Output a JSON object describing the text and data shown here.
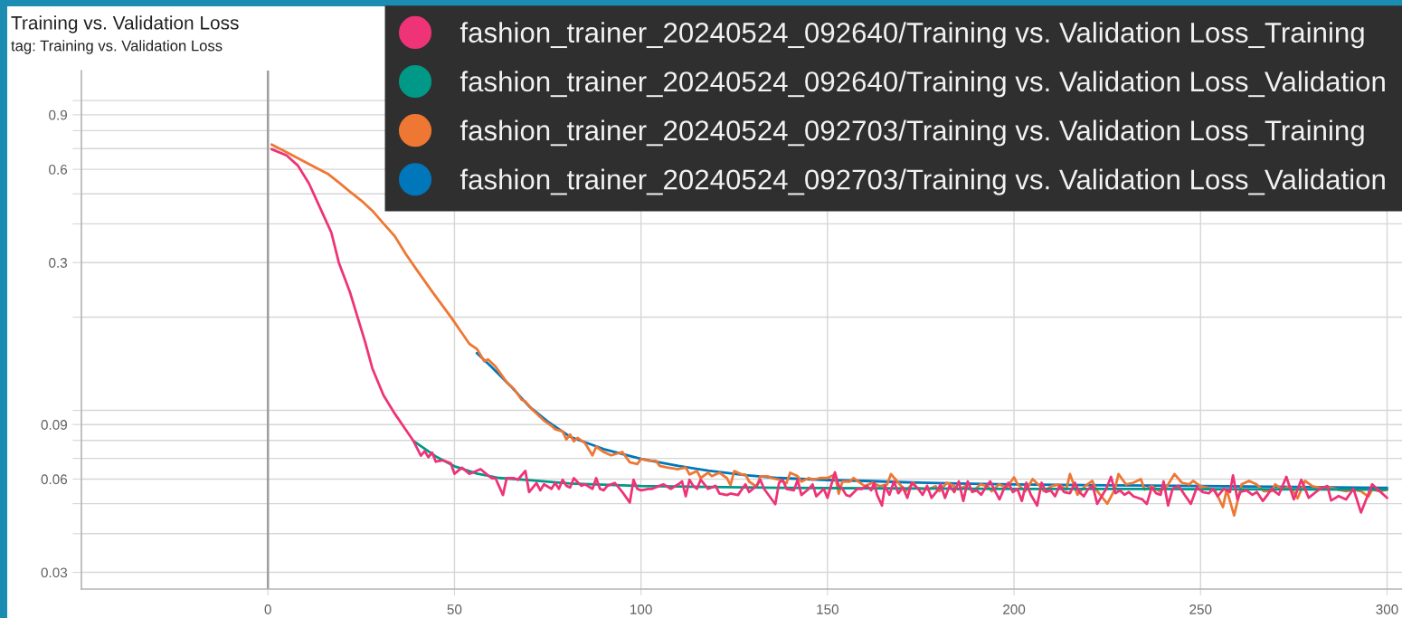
{
  "chart_data": {
    "type": "line",
    "title": "Training vs. Validation Loss",
    "subtitle": "tag: Training vs. Validation Loss",
    "log": "y",
    "grid": true,
    "legend": "top right",
    "marker": "none",
    "line_style": "solid",
    "xlim": [
      -50,
      304
    ],
    "xticks": [
      0,
      50,
      100,
      150,
      200,
      250,
      300
    ],
    "ylim": [
      0.0265,
      1.25
    ],
    "yticks": [
      0.03,
      {
        "value": 0.04,
        "label": null
      },
      {
        "value": 0.05,
        "label": null
      },
      0.06,
      {
        "value": 0.07,
        "label": null
      },
      {
        "value": 0.08,
        "label": null
      },
      0.09,
      {
        "value": 0.1,
        "label": null
      },
      {
        "value": 0.2,
        "label": null
      },
      0.3,
      {
        "value": 0.4,
        "label": null
      },
      {
        "value": 0.5,
        "label": null
      },
      0.6,
      {
        "value": 0.7,
        "label": null
      },
      {
        "value": 0.8,
        "label": null
      },
      0.9,
      {
        "value": 1,
        "label": null
      }
    ],
    "ref_lines": [
      {
        "axis": "x",
        "value": 0,
        "color": "#9e9e9e"
      }
    ],
    "series": [
      {
        "name": "fashion_trainer_20240524_092640/Training vs. Validation Loss_Training",
        "color": "#ee3377",
        "x": [
          1,
          5,
          8,
          11,
          14,
          17,
          19,
          22,
          24,
          26,
          28,
          31,
          34,
          37,
          39,
          41,
          42,
          43,
          44,
          45,
          47,
          49,
          50,
          52,
          54,
          55,
          57,
          59,
          60,
          61,
          63,
          64,
          66,
          67,
          69,
          70,
          72,
          73,
          74,
          76,
          77,
          78,
          79,
          80,
          81,
          82,
          84,
          85,
          87,
          88,
          89,
          90,
          91,
          93,
          94,
          95,
          97,
          98,
          99,
          100,
          102,
          103,
          105,
          106,
          108,
          110,
          111,
          112,
          113,
          114,
          115,
          116,
          118,
          119,
          120,
          121,
          123,
          124,
          126,
          128,
          129,
          131,
          132,
          133,
          136,
          137,
          138,
          139,
          141,
          142,
          143,
          145,
          146,
          147,
          149,
          150,
          152,
          153,
          154,
          155,
          156,
          158,
          159.3,
          160.5,
          161.7,
          162.5,
          163.3,
          164.6,
          165.4,
          166.6,
          167.8,
          169,
          170.2,
          171.4,
          172.6,
          174.3,
          175.5,
          176.7,
          177.9,
          179.5,
          180.3,
          181.5,
          182.7,
          184,
          185.2,
          186.4,
          187.6,
          188.8,
          190,
          191.2,
          192.4,
          193.6,
          194.8,
          196.1,
          197.3,
          198.5,
          199.7,
          200.9,
          202.1,
          203.3,
          204.5,
          206.2,
          207.4,
          208.6,
          209.8,
          211,
          212.2,
          213.4,
          215,
          216.3,
          217.5,
          218.7,
          219.9,
          221.1,
          222.3,
          223.5,
          224.7,
          226,
          227.2,
          228.4,
          229.6,
          230.8,
          232,
          233.2,
          234.4,
          235.6,
          236.9,
          238.1,
          239.3,
          240.1,
          241.3,
          242.5,
          244.1,
          245.7,
          247.4,
          249,
          250.6,
          252.2,
          253.4,
          254.6,
          256.2,
          257.9,
          258.7,
          259.9,
          260.7,
          262.3,
          263.9,
          265.1,
          266.7,
          268,
          269,
          271,
          273,
          275,
          277,
          279,
          282,
          284,
          285,
          287,
          289,
          291,
          293,
          296,
          300
        ],
        "values": [
          0.697,
          0.665,
          0.6175,
          0.54,
          0.45,
          0.375,
          0.3,
          0.2406,
          0.2005,
          0.1672,
          0.1366,
          0.1117,
          0.0976,
          0.0864,
          0.0797,
          0.0714,
          0.0739,
          0.0706,
          0.0731,
          0.0683,
          0.069,
          0.0675,
          0.0624,
          0.0653,
          0.0624,
          0.0631,
          0.0646,
          0.0617,
          0.0604,
          0.0604,
          0.0533,
          0.0604,
          0.0604,
          0.0597,
          0.0638,
          0.0545,
          0.0583,
          0.0552,
          0.0577,
          0.0558,
          0.0583,
          0.0558,
          0.0597,
          0.0571,
          0.0564,
          0.0604,
          0.0571,
          0.0577,
          0.0558,
          0.0604,
          0.0558,
          0.0552,
          0.0571,
          0.0583,
          0.0564,
          0.0545,
          0.0504,
          0.0597,
          0.0558,
          0.0552,
          0.0558,
          0.0558,
          0.0571,
          0.0577,
          0.0558,
          0.0577,
          0.059,
          0.0528,
          0.0597,
          0.0571,
          0.0558,
          0.0597,
          0.0558,
          0.0564,
          0.0571,
          0.0539,
          0.0533,
          0.0539,
          0.0533,
          0.0577,
          0.0545,
          0.0571,
          0.0597,
          0.0558,
          0.0498,
          0.0583,
          0.0597,
          0.0558,
          0.0552,
          0.0597,
          0.0533,
          0.0558,
          0.0577,
          0.0528,
          0.0558,
          0.0522,
          0.0631,
          0.0571,
          0.0558,
          0.0533,
          0.0528,
          0.0558,
          0.0558,
          0.0571,
          0.0552,
          0.0584,
          0.0534,
          0.0493,
          0.0571,
          0.0534,
          0.059,
          0.054,
          0.0564,
          0.0522,
          0.0584,
          0.0558,
          0.0534,
          0.0571,
          0.0522,
          0.0552,
          0.0577,
          0.0522,
          0.0571,
          0.0545,
          0.059,
          0.051,
          0.059,
          0.0545,
          0.0552,
          0.0534,
          0.0564,
          0.059,
          0.0552,
          0.0516,
          0.0558,
          0.0584,
          0.0545,
          0.0558,
          0.051,
          0.0584,
          0.0534,
          0.0493,
          0.0584,
          0.0545,
          0.0552,
          0.0528,
          0.0571,
          0.0545,
          0.054,
          0.0584,
          0.0545,
          0.0528,
          0.0558,
          0.0571,
          0.0499,
          0.0528,
          0.0558,
          0.061,
          0.054,
          0.0552,
          0.0534,
          0.0545,
          0.0528,
          0.0522,
          0.0516,
          0.0499,
          0.0564,
          0.054,
          0.0534,
          0.059,
          0.0493,
          0.0558,
          0.0571,
          0.0534,
          0.0499,
          0.0564,
          0.0545,
          0.054,
          0.0558,
          0.0528,
          0.0558,
          0.0545,
          0.0617,
          0.0516,
          0.0545,
          0.0552,
          0.0534,
          0.0545,
          0.051,
          0.0535,
          0.0558,
          0.0535,
          0.061,
          0.0516,
          0.0597,
          0.0522,
          0.0558,
          0.057,
          0.0512,
          0.0529,
          0.0516,
          0.0558,
          0.0468,
          0.0577,
          0.0522
        ]
      },
      {
        "name": "fashion_trainer_20240524_092640/Training vs. Validation Loss_Validation",
        "color": "#009988",
        "x": [
          39,
          45,
          50,
          56,
          62,
          70,
          81,
          100,
          118,
          137,
          165,
          200,
          250,
          300
        ],
        "values": [
          0.0797,
          0.071,
          0.066,
          0.0625,
          0.0605,
          0.0595,
          0.0581,
          0.057,
          0.0566,
          0.0562,
          0.056,
          0.0558,
          0.0557,
          0.0555
        ]
      },
      {
        "name": "fashion_trainer_20240524_092703/Training vs. Validation Loss_Training",
        "color": "#ee7733",
        "x": [
          1,
          5,
          8,
          12,
          16,
          19,
          22,
          25,
          28,
          31,
          34,
          37,
          40,
          44,
          49,
          54,
          56,
          58,
          59,
          61,
          64,
          66,
          68,
          69,
          71,
          74,
          76,
          77,
          79,
          80,
          81,
          82,
          83,
          85,
          87,
          88,
          90,
          92,
          95,
          97,
          99,
          100,
          102,
          104,
          105,
          107,
          110,
          112,
          113,
          115,
          116,
          118,
          119,
          121,
          123,
          124,
          125,
          127,
          128,
          129,
          131,
          132,
          134,
          135,
          137,
          139,
          140,
          142,
          143,
          145,
          146,
          148,
          150,
          152,
          153,
          154,
          156,
          157,
          160,
          162,
          164,
          166,
          167,
          169,
          171,
          173,
          174,
          177,
          179,
          180,
          182,
          184,
          185,
          187,
          189,
          191,
          193,
          194,
          196,
          198,
          200,
          201,
          203,
          205,
          207,
          208,
          210,
          212,
          214,
          215,
          217,
          219,
          221,
          222,
          225,
          227,
          228,
          230,
          232,
          234,
          235,
          237,
          239,
          241,
          243,
          245,
          247,
          248,
          250,
          252,
          254,
          256,
          257,
          259,
          261,
          263,
          265,
          267,
          269,
          270,
          272,
          274,
          276,
          278,
          280,
          282,
          283,
          285,
          287,
          289,
          291,
          293,
          295,
          296,
          298,
          300
        ],
        "values": [
          0.721,
          0.681,
          0.652,
          0.615,
          0.581,
          0.544,
          0.508,
          0.476,
          0.441,
          0.401,
          0.365,
          0.319,
          0.283,
          0.242,
          0.2005,
          0.164,
          0.158,
          0.144,
          0.146,
          0.1385,
          0.1233,
          0.1171,
          0.1083,
          0.1069,
          0.1002,
          0.0927,
          0.0892,
          0.0869,
          0.0855,
          0.0805,
          0.0836,
          0.0794,
          0.0815,
          0.0784,
          0.0716,
          0.0763,
          0.0734,
          0.0716,
          0.0734,
          0.068,
          0.0671,
          0.0697,
          0.0688,
          0.0688,
          0.0662,
          0.0654,
          0.0646,
          0.0654,
          0.0621,
          0.0637,
          0.0605,
          0.0629,
          0.0613,
          0.0629,
          0.0605,
          0.0574,
          0.0637,
          0.0621,
          0.0621,
          0.0589,
          0.0567,
          0.0613,
          0.0613,
          0.0605,
          0.0597,
          0.0582,
          0.0629,
          0.0613,
          0.0589,
          0.0605,
          0.0597,
          0.0605,
          0.0605,
          0.0621,
          0.0538,
          0.0589,
          0.0589,
          0.0605,
          0.0569,
          0.0584,
          0.0569,
          0.0577,
          0.0623,
          0.0584,
          0.0548,
          0.0584,
          0.0562,
          0.0555,
          0.0569,
          0.0548,
          0.0584,
          0.0569,
          0.0555,
          0.0569,
          0.0548,
          0.0577,
          0.0569,
          0.0548,
          0.0577,
          0.0562,
          0.0608,
          0.0577,
          0.0548,
          0.06,
          0.0569,
          0.0548,
          0.0569,
          0.0577,
          0.0555,
          0.0623,
          0.0534,
          0.0569,
          0.0592,
          0.0555,
          0.05,
          0.0555,
          0.0623,
          0.0577,
          0.0584,
          0.06,
          0.0555,
          0.0569,
          0.0548,
          0.0569,
          0.0623,
          0.0584,
          0.0577,
          0.0592,
          0.0569,
          0.0562,
          0.0548,
          0.0487,
          0.0555,
          0.0458,
          0.0577,
          0.0592,
          0.0577,
          0.0548,
          0.0548,
          0.0577,
          0.0555,
          0.0569,
          0.052,
          0.0592,
          0.0569,
          0.0562,
          0.0562,
          0.0562,
          0.0555,
          0.0548,
          0.0555,
          0.0548,
          0.0527,
          0.0555,
          0.0548,
          0.0555
        ]
      },
      {
        "name": "fashion_trainer_20240524_092703/Training vs. Validation Loss_Validation",
        "color": "#0077bb",
        "x": [
          56,
          60,
          65,
          70,
          75,
          81,
          90,
          100,
          110,
          118,
          128,
          137,
          150,
          160,
          171,
          185,
          200,
          225,
          250,
          275,
          300
        ],
        "values": [
          0.153,
          0.138,
          0.12,
          0.103,
          0.092,
          0.0822,
          0.075,
          0.0697,
          0.0662,
          0.0639,
          0.0618,
          0.0605,
          0.0596,
          0.0592,
          0.0586,
          0.0581,
          0.0577,
          0.0573,
          0.057,
          0.0566,
          0.0562
        ]
      }
    ]
  }
}
